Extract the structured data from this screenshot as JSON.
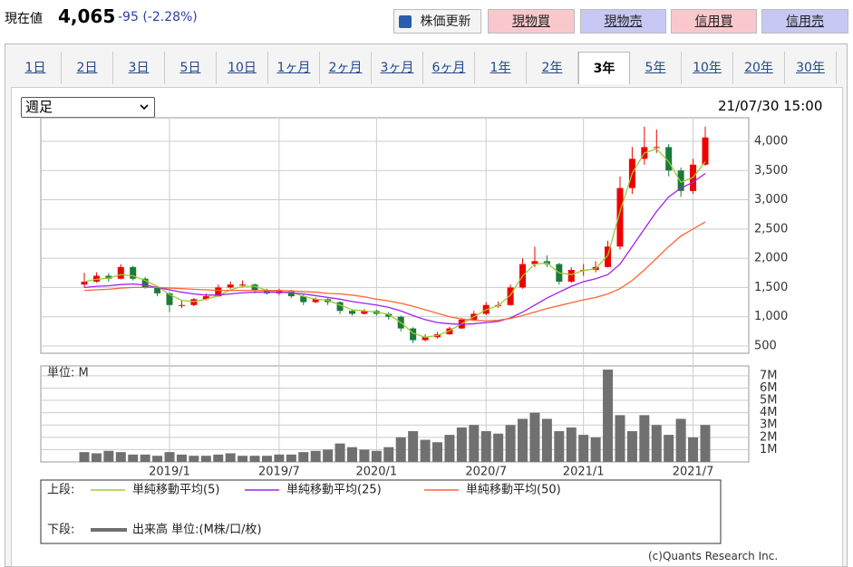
{
  "header": {
    "label": "現在値",
    "price": "4,065",
    "change": "-95 (-2.28%)"
  },
  "buttons": [
    "株価更新",
    "現物買",
    "現物売",
    "信用買",
    "信用売"
  ],
  "tabs": [
    "1日",
    "2日",
    "3日",
    "5日",
    "10日",
    "1ヶ月",
    "2ヶ月",
    "3ヶ月",
    "6ヶ月",
    "1年",
    "2年",
    "3年",
    "5年",
    "10年",
    "20年",
    "30年"
  ],
  "select": "週足",
  "timestamp": "21/07/30 15:00",
  "copyright": "(c)Quants Research Inc.",
  "chart_data": [
    {
      "type": "candlestick",
      "legend_title": "上段:",
      "up_color": "#ee0000",
      "down_color": "#1a7a3a",
      "ohlc": [
        [
          1550,
          1750,
          1500,
          1600
        ],
        [
          1600,
          1760,
          1580,
          1700
        ],
        [
          1700,
          1750,
          1600,
          1650
        ],
        [
          1650,
          1900,
          1640,
          1850
        ],
        [
          1850,
          1870,
          1620,
          1650
        ],
        [
          1650,
          1680,
          1480,
          1500
        ],
        [
          1500,
          1520,
          1350,
          1400
        ],
        [
          1400,
          1420,
          1080,
          1200
        ],
        [
          1200,
          1280,
          1150,
          1200
        ],
        [
          1200,
          1320,
          1180,
          1300
        ],
        [
          1300,
          1400,
          1280,
          1350
        ],
        [
          1350,
          1550,
          1340,
          1500
        ],
        [
          1500,
          1600,
          1480,
          1550
        ],
        [
          1550,
          1620,
          1500,
          1550
        ],
        [
          1550,
          1570,
          1400,
          1450
        ],
        [
          1450,
          1480,
          1380,
          1400
        ],
        [
          1400,
          1480,
          1370,
          1450
        ],
        [
          1450,
          1460,
          1320,
          1350
        ],
        [
          1350,
          1380,
          1200,
          1250
        ],
        [
          1250,
          1330,
          1230,
          1300
        ],
        [
          1300,
          1320,
          1200,
          1250
        ],
        [
          1250,
          1260,
          1050,
          1100
        ],
        [
          1100,
          1120,
          1020,
          1050
        ],
        [
          1050,
          1130,
          1040,
          1100
        ],
        [
          1100,
          1120,
          1020,
          1050
        ],
        [
          1050,
          1080,
          950,
          1000
        ],
        [
          1000,
          1020,
          750,
          800
        ],
        [
          800,
          820,
          550,
          600
        ],
        [
          600,
          700,
          580,
          650
        ],
        [
          650,
          740,
          630,
          700
        ],
        [
          700,
          830,
          690,
          800
        ],
        [
          800,
          980,
          790,
          950
        ],
        [
          950,
          1100,
          930,
          1050
        ],
        [
          1050,
          1250,
          1030,
          1200
        ],
        [
          1200,
          1260,
          1150,
          1200
        ],
        [
          1200,
          1550,
          1190,
          1500
        ],
        [
          1500,
          2000,
          1480,
          1900
        ],
        [
          1900,
          2200,
          1850,
          1950
        ],
        [
          1950,
          2050,
          1850,
          1900
        ],
        [
          1900,
          1920,
          1550,
          1600
        ],
        [
          1600,
          1850,
          1580,
          1800
        ],
        [
          1800,
          1900,
          1700,
          1800
        ],
        [
          1800,
          1950,
          1760,
          1850
        ],
        [
          1850,
          2300,
          1840,
          2200
        ],
        [
          2200,
          3400,
          2150,
          3200
        ],
        [
          3200,
          3900,
          3100,
          3700
        ],
        [
          3700,
          4250,
          3600,
          3900
        ],
        [
          3900,
          4200,
          3800,
          3900
        ],
        [
          3900,
          3950,
          3400,
          3500
        ],
        [
          3500,
          3550,
          3050,
          3150
        ],
        [
          3150,
          3700,
          3100,
          3600
        ],
        [
          3600,
          4250,
          3580,
          4065
        ]
      ],
      "series": [
        {
          "name": "単純移動平均(5)",
          "color": "#9acd32",
          "values": [
            1600,
            1640,
            1660,
            1720,
            1700,
            1620,
            1520,
            1380,
            1280,
            1260,
            1300,
            1360,
            1460,
            1520,
            1520,
            1450,
            1420,
            1420,
            1350,
            1300,
            1280,
            1200,
            1120,
            1100,
            1080,
            1040,
            900,
            720,
            650,
            680,
            760,
            880,
            1000,
            1120,
            1190,
            1370,
            1700,
            1900,
            1920,
            1750,
            1720,
            1790,
            1820,
            2050,
            2800,
            3450,
            3800,
            3870,
            3650,
            3300,
            3380,
            3650
          ]
        },
        {
          "name": "単純移動平均(25)",
          "color": "#a020f0",
          "values": [
            1500,
            1520,
            1530,
            1550,
            1560,
            1540,
            1500,
            1460,
            1420,
            1390,
            1370,
            1370,
            1390,
            1410,
            1420,
            1420,
            1420,
            1410,
            1390,
            1360,
            1330,
            1300,
            1260,
            1230,
            1200,
            1160,
            1100,
            1020,
            950,
            900,
            880,
            870,
            880,
            900,
            920,
            980,
            1080,
            1200,
            1320,
            1420,
            1520,
            1600,
            1650,
            1720,
            1900,
            2200,
            2500,
            2800,
            3050,
            3200,
            3300,
            3450
          ]
        },
        {
          "name": "単純移動平均(50)",
          "color": "#ff6633",
          "values": [
            1450,
            1460,
            1470,
            1490,
            1500,
            1500,
            1500,
            1490,
            1480,
            1470,
            1460,
            1450,
            1450,
            1450,
            1450,
            1450,
            1450,
            1440,
            1430,
            1420,
            1400,
            1390,
            1370,
            1340,
            1300,
            1270,
            1230,
            1180,
            1120,
            1060,
            1000,
            960,
            940,
            930,
            940,
            970,
            1020,
            1080,
            1140,
            1190,
            1240,
            1290,
            1330,
            1390,
            1480,
            1620,
            1800,
            2000,
            2200,
            2380,
            2500,
            2620
          ]
        }
      ],
      "ylim": [
        376,
        4402
      ],
      "yticks": [
        500,
        {
          "value": 1000,
          "label": "1,000"
        },
        {
          "value": 1500,
          "label": "1,500"
        },
        {
          "value": 2000,
          "label": "2,000"
        },
        {
          "value": 2500,
          "label": "2,500"
        },
        {
          "value": 3000,
          "label": "3,000"
        },
        {
          "value": 3500,
          "label": "3,500"
        },
        {
          "value": 4000,
          "label": "4,000"
        }
      ],
      "grid": true
    },
    {
      "type": "bar",
      "unit_label": "単位: M",
      "legend_title": "下段:",
      "series_name": "出来高 単位:(M株/口/枚)",
      "color": "#707070",
      "categories": [
        null,
        null,
        null,
        null,
        null,
        null,
        null,
        "2019/1",
        null,
        null,
        null,
        null,
        null,
        null,
        null,
        null,
        "2019/7",
        null,
        null,
        null,
        null,
        null,
        null,
        null,
        "2020/1",
        null,
        null,
        null,
        null,
        null,
        null,
        null,
        null,
        "2020/7",
        null,
        null,
        null,
        null,
        null,
        null,
        null,
        "2021/1",
        null,
        null,
        null,
        null,
        null,
        null,
        null,
        null,
        "2021/7",
        null
      ],
      "values": [
        0.8,
        0.7,
        0.9,
        0.8,
        0.6,
        0.6,
        0.5,
        0.8,
        0.6,
        0.5,
        0.5,
        0.6,
        0.7,
        0.5,
        0.5,
        0.5,
        0.6,
        0.6,
        0.8,
        0.9,
        1.0,
        1.5,
        1.2,
        1.0,
        0.9,
        1.2,
        2.0,
        2.5,
        1.8,
        1.6,
        2.2,
        2.8,
        3.0,
        2.5,
        2.3,
        3.0,
        3.5,
        4.0,
        3.5,
        2.5,
        2.8,
        2.2,
        2.0,
        7.5,
        3.8,
        2.5,
        3.8,
        3.0,
        2.2,
        3.5,
        2.0,
        3.0
      ],
      "ylim": [
        0,
        7.8
      ],
      "yticks": [
        {
          "value": 1,
          "label": "1M"
        },
        {
          "value": 2,
          "label": "2M"
        },
        {
          "value": 3,
          "label": "3M"
        },
        {
          "value": 4,
          "label": "4M"
        },
        {
          "value": 5,
          "label": "5M"
        },
        {
          "value": 6,
          "label": "6M"
        },
        {
          "value": 7,
          "label": "7M"
        }
      ],
      "grid": true
    }
  ]
}
